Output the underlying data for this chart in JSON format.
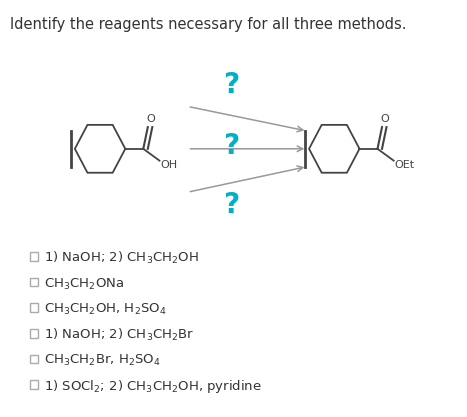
{
  "title": "Identify the reagents necessary for all three methods.",
  "title_fontsize": 10.5,
  "title_color": "#333333",
  "background_color": "#ffffff",
  "question_color": "#00B0C8",
  "arrow_color": "#999999",
  "checkbox_color": "#aaaaaa",
  "text_color": "#333333",
  "mol_color": "#444444",
  "figsize": [
    4.67,
    4.17
  ],
  "dpi": 100,
  "option_fontsize": 9.5,
  "option_lines": [
    [
      "1) NaOH; 2) CH",
      "3",
      "CH",
      "2",
      "OH"
    ],
    [
      "CH",
      "3",
      "CH",
      "2",
      "ONa"
    ],
    [
      "CH",
      "3",
      "CH",
      "2",
      "OH, H",
      "2",
      "SO",
      "4"
    ],
    [
      "1) NaOH; 2) CH",
      "3",
      "CH",
      "2",
      "Br"
    ],
    [
      "CH",
      "3",
      "CH",
      "2",
      "Br, H",
      "2",
      "SO",
      "4"
    ],
    [
      "1) SOCl",
      "2",
      "; 2) CH",
      "3",
      "CH",
      "2",
      "OH, pyridine"
    ]
  ]
}
